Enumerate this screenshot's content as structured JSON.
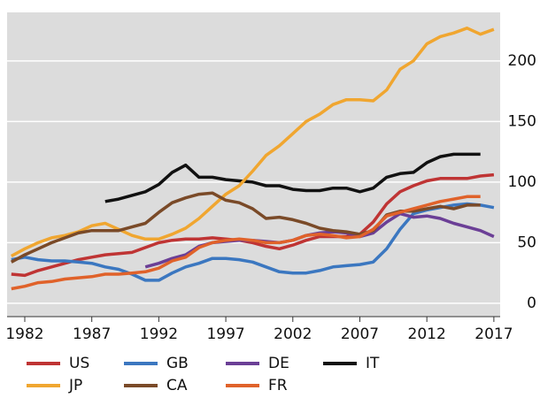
{
  "chart_data": {
    "type": "line",
    "x": [
      1981,
      1982,
      1983,
      1984,
      1985,
      1986,
      1987,
      1988,
      1989,
      1990,
      1991,
      1992,
      1993,
      1994,
      1995,
      1996,
      1997,
      1998,
      1999,
      2000,
      2001,
      2002,
      2003,
      2004,
      2005,
      2006,
      2007,
      2008,
      2009,
      2010,
      2011,
      2012,
      2013,
      2014,
      2015,
      2016,
      2017
    ],
    "series": [
      {
        "name": "US",
        "color": "#bf3434",
        "values": [
          24,
          23,
          27,
          30,
          33,
          36,
          38,
          40,
          41,
          42,
          46,
          50,
          52,
          53,
          53,
          54,
          53,
          52,
          50,
          47,
          45,
          48,
          52,
          55,
          55,
          55,
          57,
          67,
          82,
          92,
          97,
          101,
          103,
          103,
          103,
          105,
          106
        ]
      },
      {
        "name": "GB",
        "color": "#3b77c0",
        "values": [
          36,
          38,
          36,
          35,
          35,
          34,
          33,
          30,
          28,
          24,
          19,
          19,
          25,
          30,
          33,
          37,
          37,
          36,
          34,
          30,
          26,
          25,
          25,
          27,
          30,
          31,
          32,
          34,
          45,
          61,
          74,
          77,
          79,
          81,
          82,
          81,
          79
        ]
      },
      {
        "name": "DE",
        "color": "#6b3f96",
        "values": [
          null,
          null,
          null,
          null,
          null,
          null,
          null,
          null,
          null,
          null,
          30,
          33,
          37,
          40,
          47,
          50,
          51,
          52,
          52,
          51,
          50,
          52,
          56,
          58,
          59,
          58,
          55,
          58,
          67,
          74,
          71,
          72,
          70,
          66,
          63,
          60,
          55
        ]
      },
      {
        "name": "IT",
        "color": "#111111",
        "values": [
          null,
          null,
          null,
          null,
          null,
          null,
          null,
          84,
          86,
          89,
          92,
          98,
          108,
          114,
          104,
          104,
          102,
          101,
          100,
          97,
          97,
          94,
          93,
          93,
          95,
          95,
          92,
          95,
          104,
          107,
          108,
          116,
          121,
          123,
          123,
          123,
          null
        ]
      },
      {
        "name": "JP",
        "color": "#f0a630",
        "values": [
          39,
          45,
          50,
          54,
          56,
          59,
          64,
          66,
          61,
          56,
          53,
          53,
          57,
          62,
          70,
          80,
          90,
          97,
          109,
          122,
          130,
          140,
          150,
          156,
          164,
          168,
          168,
          167,
          176,
          193,
          200,
          214,
          220,
          223,
          227,
          222,
          226
        ]
      },
      {
        "name": "CA",
        "color": "#7a4a28",
        "values": [
          34,
          40,
          45,
          50,
          54,
          58,
          60,
          60,
          60,
          63,
          66,
          75,
          83,
          87,
          90,
          91,
          85,
          83,
          78,
          70,
          71,
          69,
          66,
          62,
          60,
          59,
          57,
          60,
          73,
          76,
          76,
          78,
          80,
          78,
          81,
          81,
          null
        ]
      },
      {
        "name": "FR",
        "color": "#e0622a",
        "values": [
          12,
          14,
          17,
          18,
          20,
          21,
          22,
          24,
          24,
          25,
          26,
          29,
          35,
          38,
          46,
          50,
          52,
          53,
          52,
          50,
          50,
          52,
          56,
          57,
          56,
          54,
          55,
          61,
          72,
          75,
          78,
          81,
          84,
          86,
          88,
          88,
          null
        ]
      }
    ],
    "xlim": [
      1980.68,
      2017.47
    ],
    "ylim": [
      -11,
      240
    ],
    "xticks": [
      1982,
      1987,
      1992,
      1997,
      2002,
      2007,
      2012,
      2017
    ],
    "yticks": [
      0,
      50,
      100,
      150,
      200
    ],
    "grid": true
  }
}
